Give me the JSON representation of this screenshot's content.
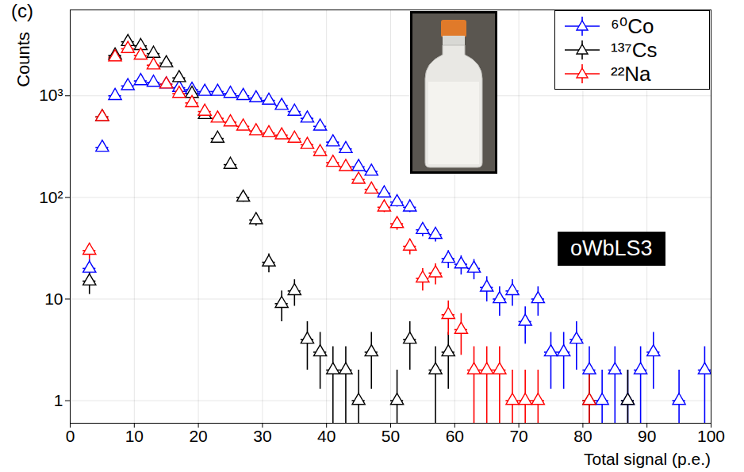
{
  "chart_data": {
    "type": "scatter",
    "title": "(c)",
    "x_label": "Total signal (p.e.)",
    "y_label": "Counts",
    "annotations": [
      "oWbLS3"
    ],
    "log": "y",
    "grid": true,
    "legend": "top-right",
    "marker": "triangle-open",
    "xlim": [
      0,
      100
    ],
    "xticks": [
      0,
      10,
      20,
      30,
      40,
      50,
      60,
      70,
      80,
      90,
      100
    ],
    "ylim": [
      0.6,
      7000
    ],
    "yticks": [
      1,
      10,
      {
        "value": 100,
        "label": "10²"
      },
      {
        "value": 1000,
        "label": "10³"
      }
    ],
    "series": [
      {
        "name": "⁶⁰Co",
        "color": "#0000ff",
        "xerr": 1,
        "x": [
          3,
          5,
          7,
          9,
          11,
          13,
          15,
          17,
          19,
          21,
          23,
          25,
          27,
          29,
          31,
          33,
          35,
          37,
          39,
          41,
          43,
          45,
          47,
          49,
          51,
          53,
          55,
          57,
          59,
          61,
          63,
          65,
          67,
          69,
          71,
          73,
          75,
          77,
          79,
          81,
          83,
          85,
          87,
          89,
          91,
          95,
          99
        ],
        "values": [
          20,
          310,
          1000,
          1250,
          1400,
          1350,
          1300,
          1200,
          1150,
          1100,
          1100,
          1050,
          1000,
          950,
          900,
          800,
          700,
          600,
          500,
          350,
          300,
          200,
          180,
          110,
          90,
          80,
          48,
          43,
          25,
          22,
          20,
          13,
          10,
          12,
          6,
          10,
          3,
          3,
          4,
          2,
          1,
          2,
          1,
          2,
          3,
          1,
          2
        ],
        "errors": [
          4.5,
          17.6,
          31.6,
          35.4,
          37.4,
          36.7,
          36.1,
          34.6,
          33.9,
          33.2,
          33.2,
          32.4,
          31.6,
          30.8,
          30,
          28.3,
          26.5,
          24.5,
          22.4,
          18.7,
          17.3,
          14.1,
          13.4,
          10.5,
          9.5,
          8.9,
          6.9,
          6.6,
          5,
          4.7,
          4.5,
          3.6,
          3.2,
          3.5,
          2.4,
          3.2,
          1.7,
          1.7,
          2,
          1.4,
          1,
          1.4,
          1,
          1.4,
          1.7,
          1,
          1.4
        ]
      },
      {
        "name": "¹³⁷Cs",
        "color": "#000000",
        "xerr": 1,
        "x": [
          3,
          5,
          7,
          9,
          11,
          13,
          15,
          17,
          19,
          21,
          23,
          25,
          27,
          29,
          31,
          33,
          35,
          37,
          39,
          41,
          43,
          45,
          47,
          51,
          53,
          57,
          59,
          81,
          87
        ],
        "values": [
          15,
          620,
          2500,
          3400,
          3100,
          2600,
          2100,
          1500,
          1050,
          650,
          380,
          210,
          100,
          60,
          23,
          9,
          12,
          4,
          3,
          2,
          2,
          1,
          3,
          1,
          4,
          2,
          3,
          1,
          1
        ],
        "errors": [
          3.9,
          24.9,
          50,
          58.3,
          55.7,
          51,
          45.8,
          38.7,
          32.4,
          25.5,
          19.5,
          14.5,
          10,
          7.7,
          4.8,
          3,
          3.5,
          2,
          1.7,
          1.4,
          1.4,
          1,
          1.7,
          1,
          2,
          1.4,
          1.7,
          1,
          1
        ]
      },
      {
        "name": "²²Na",
        "color": "#ff0000",
        "xerr": 1,
        "x": [
          3,
          5,
          7,
          9,
          11,
          13,
          15,
          17,
          19,
          21,
          23,
          25,
          27,
          29,
          31,
          33,
          35,
          37,
          39,
          41,
          43,
          45,
          47,
          49,
          51,
          53,
          55,
          57,
          59,
          61,
          63,
          65,
          67,
          69,
          71,
          73,
          81
        ],
        "values": [
          30,
          620,
          2400,
          2900,
          2500,
          2000,
          1300,
          1050,
          850,
          700,
          600,
          550,
          500,
          450,
          430,
          410,
          380,
          330,
          280,
          220,
          200,
          150,
          120,
          80,
          55,
          33,
          16,
          18,
          7,
          5,
          2,
          2,
          2,
          1,
          1,
          1,
          1
        ],
        "errors": [
          5.5,
          24.9,
          49,
          53.9,
          50,
          44.7,
          36.1,
          32.4,
          29.2,
          26.5,
          24.5,
          23.5,
          22.4,
          21.2,
          20.7,
          20.2,
          19.5,
          18.2,
          16.7,
          14.8,
          14.1,
          12.2,
          11,
          8.9,
          7.4,
          5.7,
          4,
          4.2,
          2.6,
          2.2,
          1.4,
          1.4,
          1.4,
          1,
          1,
          1,
          1
        ]
      }
    ]
  }
}
